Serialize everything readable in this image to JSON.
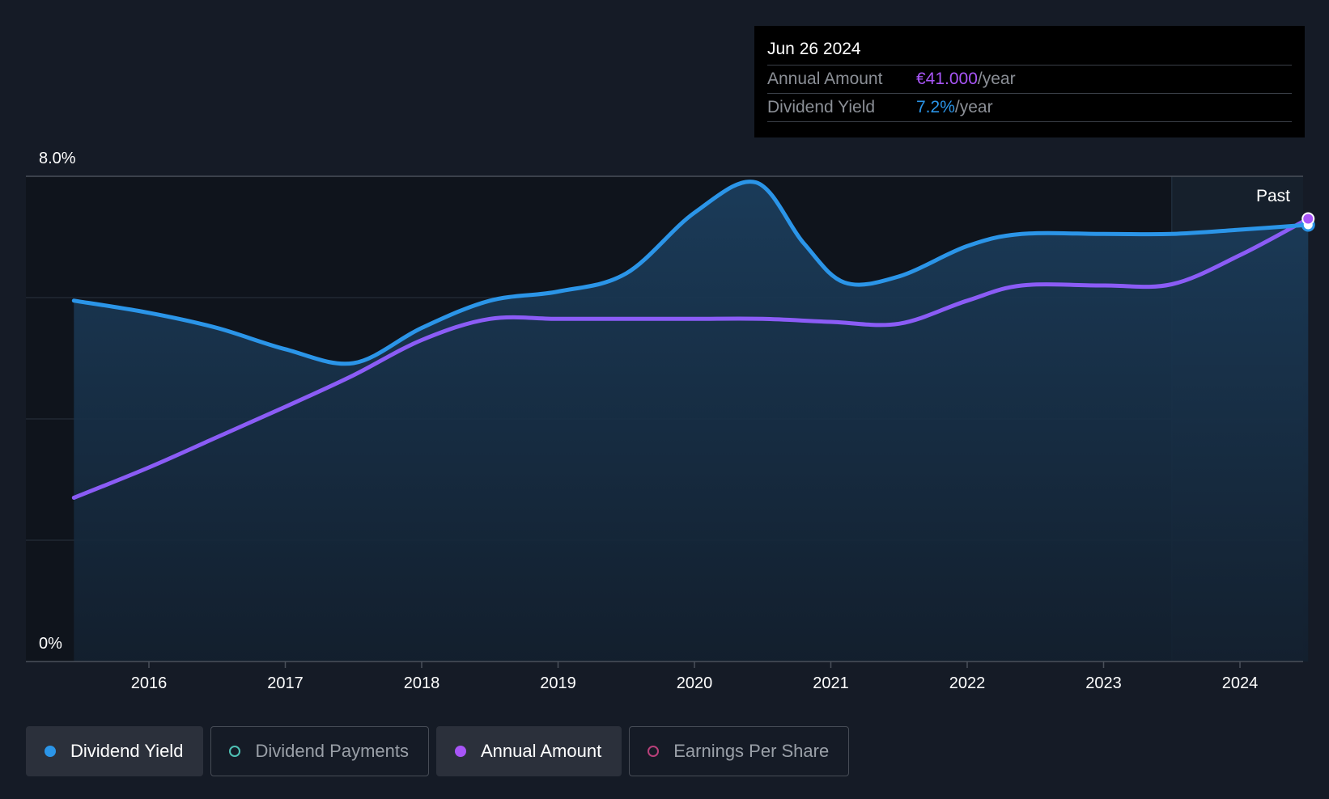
{
  "tooltip": {
    "date": "Jun 26 2024",
    "annual_amount_label": "Annual Amount",
    "annual_amount_value": "€41.000",
    "annual_amount_unit": "/year",
    "dividend_yield_label": "Dividend Yield",
    "dividend_yield_value": "7.2%",
    "dividend_yield_unit": "/year"
  },
  "legend": [
    {
      "label": "Dividend Yield",
      "active": true,
      "color": "#2b95e8"
    },
    {
      "label": "Dividend Payments",
      "active": false,
      "color": "#4fc1b5"
    },
    {
      "label": "Annual Amount",
      "active": true,
      "color": "#a855f7"
    },
    {
      "label": "Earnings Per Share",
      "active": false,
      "color": "#b8407a"
    }
  ],
  "chart_data": {
    "type": "line",
    "ylim": [
      0,
      8
    ],
    "xlim": [
      2015.45,
      2024.5
    ],
    "y_tick_labels": [
      {
        "value": 8,
        "label": "8.0%"
      },
      {
        "value": 0,
        "label": "0%"
      }
    ],
    "x_ticks": [
      2016,
      2017,
      2018,
      2019,
      2020,
      2021,
      2022,
      2023,
      2024
    ],
    "x_tick_labels": [
      "2016",
      "2017",
      "2018",
      "2019",
      "2020",
      "2021",
      "2022",
      "2023",
      "2024"
    ],
    "past_label": "Past",
    "past_start": 2023.5,
    "colors": {
      "dividend_yield": "#2b95e8",
      "annual_amount": "#8b5cf6"
    },
    "series": [
      {
        "name": "Dividend Yield",
        "unit": "%",
        "points": [
          [
            2015.45,
            5.95
          ],
          [
            2016.0,
            5.75
          ],
          [
            2016.5,
            5.5
          ],
          [
            2017.0,
            5.15
          ],
          [
            2017.5,
            4.92
          ],
          [
            2018.0,
            5.5
          ],
          [
            2018.5,
            5.95
          ],
          [
            2019.0,
            6.1
          ],
          [
            2019.5,
            6.4
          ],
          [
            2020.0,
            7.4
          ],
          [
            2020.45,
            7.9
          ],
          [
            2020.8,
            6.9
          ],
          [
            2021.1,
            6.25
          ],
          [
            2021.5,
            6.35
          ],
          [
            2022.0,
            6.85
          ],
          [
            2022.4,
            7.05
          ],
          [
            2023.0,
            7.05
          ],
          [
            2023.5,
            7.05
          ],
          [
            2024.0,
            7.12
          ],
          [
            2024.5,
            7.2
          ]
        ]
      },
      {
        "name": "Annual Amount",
        "unit": "scaled",
        "points": [
          [
            2015.45,
            2.7
          ],
          [
            2016.0,
            3.2
          ],
          [
            2016.5,
            3.7
          ],
          [
            2017.0,
            4.2
          ],
          [
            2017.5,
            4.72
          ],
          [
            2018.0,
            5.3
          ],
          [
            2018.5,
            5.65
          ],
          [
            2019.0,
            5.65
          ],
          [
            2019.5,
            5.65
          ],
          [
            2020.0,
            5.65
          ],
          [
            2020.5,
            5.65
          ],
          [
            2021.0,
            5.6
          ],
          [
            2021.5,
            5.57
          ],
          [
            2022.0,
            5.95
          ],
          [
            2022.4,
            6.2
          ],
          [
            2023.0,
            6.2
          ],
          [
            2023.5,
            6.22
          ],
          [
            2024.0,
            6.7
          ],
          [
            2024.5,
            7.3
          ]
        ]
      }
    ]
  }
}
